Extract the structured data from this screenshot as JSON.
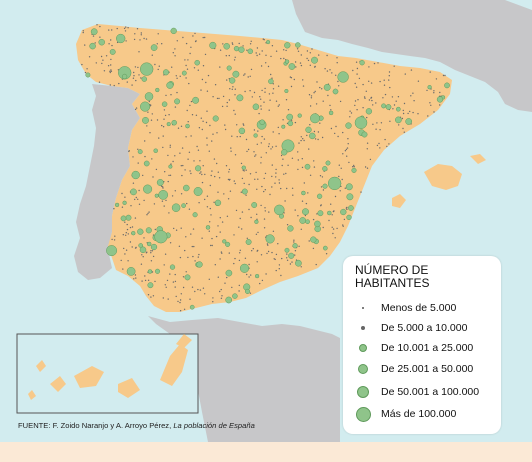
{
  "map": {
    "colors": {
      "sea": "#d2ecef",
      "land_foreign": "#c7c7c9",
      "land_spain": "#f7c98a",
      "border": "#ffffff",
      "settlement": "#8fc48a",
      "settlement_stroke": "#5f9a5b",
      "page_bg": "#fbe9d6"
    },
    "legend": {
      "title_line1": "NÚMERO DE",
      "title_line2": "HABITANTES",
      "items": [
        {
          "label": "Menos de 5.000",
          "size": "tiny"
        },
        {
          "label": "De 5.000 a 10.000",
          "size": "small"
        },
        {
          "label": "De 10.001 a 25.000",
          "size": "d1"
        },
        {
          "label": "De 25.001 a 50.000",
          "size": "d2"
        },
        {
          "label": "De 50.001 a 100.000",
          "size": "d3"
        },
        {
          "label": "Más de 100.000",
          "size": "d4"
        }
      ]
    },
    "source": {
      "prefix": "FUENTE: F. Zoido Naranjo y A. Arroyo Pérez, ",
      "title": "La población de España"
    }
  }
}
